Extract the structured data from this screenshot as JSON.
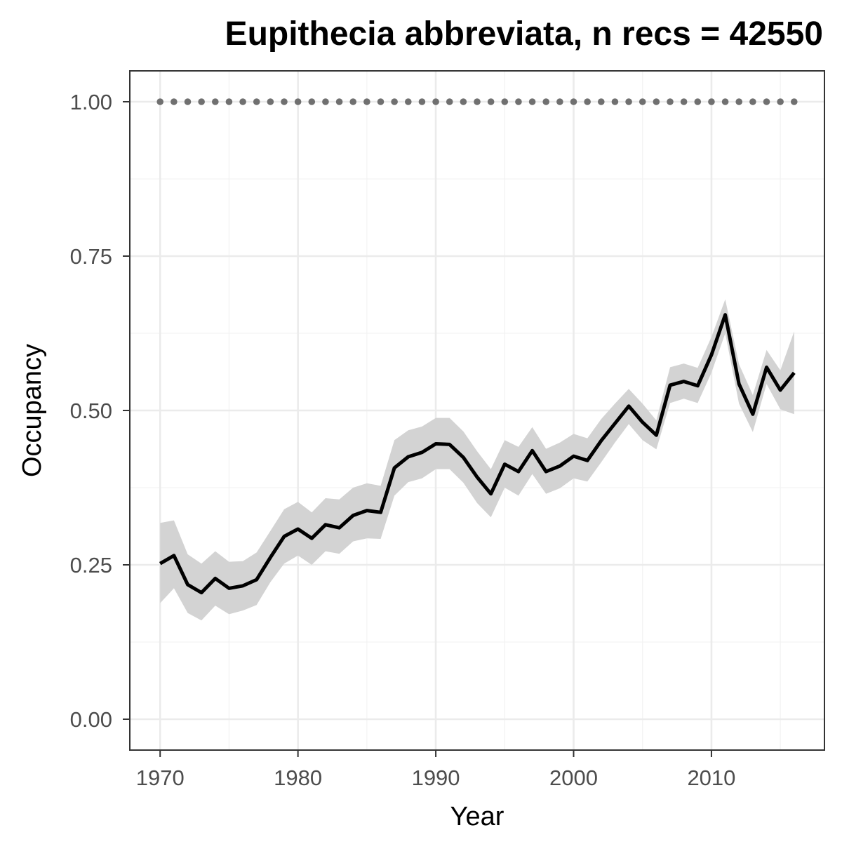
{
  "chart_data": {
    "type": "line",
    "title": "Eupithecia abbreviata, n recs = 42550",
    "xlabel": "Year",
    "ylabel": "Occupancy",
    "xlim": [
      1967.8,
      2018.2
    ],
    "ylim": [
      -0.05,
      1.05
    ],
    "x_ticks": [
      1970,
      1980,
      1990,
      2000,
      2010
    ],
    "y_ticks": [
      0.0,
      0.25,
      0.5,
      0.75,
      1.0
    ],
    "y_tick_labels": [
      "0.00",
      "0.25",
      "0.50",
      "0.75",
      "1.00"
    ],
    "grid": true,
    "legend": "none",
    "colors": {
      "line": "#000000",
      "ribbon": "#d3d3d3",
      "reference_points": "#707070",
      "grid_major": "#ebebeb",
      "grid_minor": "#f3f3f3",
      "panel_border": "#333333"
    },
    "series": [
      {
        "x": [
          1970,
          1971,
          1972,
          1973,
          1974,
          1975,
          1976,
          1977,
          1978,
          1979,
          1980,
          1981,
          1982,
          1983,
          1984,
          1985,
          1986,
          1987,
          1988,
          1989,
          1990,
          1991,
          1992,
          1993,
          1994,
          1995,
          1996,
          1997,
          1998,
          1999,
          2000,
          2001,
          2002,
          2003,
          2004,
          2005,
          2006,
          2007,
          2008,
          2009,
          2010,
          2011,
          2012,
          2013,
          2014,
          2015,
          2016
        ],
        "values": [
          0.252,
          0.265,
          0.218,
          0.205,
          0.228,
          0.212,
          0.216,
          0.226,
          0.262,
          0.296,
          0.308,
          0.293,
          0.315,
          0.31,
          0.33,
          0.338,
          0.335,
          0.407,
          0.425,
          0.432,
          0.446,
          0.445,
          0.424,
          0.392,
          0.365,
          0.413,
          0.401,
          0.435,
          0.401,
          0.41,
          0.426,
          0.419,
          0.451,
          0.479,
          0.507,
          0.481,
          0.46,
          0.541,
          0.547,
          0.54,
          0.59,
          0.655,
          0.543,
          0.494,
          0.57,
          0.533,
          0.561
        ],
        "lower": [
          0.188,
          0.212,
          0.172,
          0.16,
          0.184,
          0.17,
          0.176,
          0.185,
          0.222,
          0.252,
          0.265,
          0.25,
          0.272,
          0.268,
          0.288,
          0.293,
          0.292,
          0.362,
          0.384,
          0.39,
          0.405,
          0.405,
          0.383,
          0.35,
          0.327,
          0.375,
          0.362,
          0.397,
          0.365,
          0.374,
          0.39,
          0.385,
          0.416,
          0.448,
          0.478,
          0.452,
          0.437,
          0.512,
          0.519,
          0.512,
          0.561,
          0.625,
          0.511,
          0.465,
          0.543,
          0.502,
          0.494
        ],
        "upper": [
          0.318,
          0.322,
          0.267,
          0.252,
          0.272,
          0.255,
          0.256,
          0.27,
          0.305,
          0.34,
          0.352,
          0.335,
          0.358,
          0.356,
          0.375,
          0.382,
          0.378,
          0.452,
          0.468,
          0.474,
          0.488,
          0.488,
          0.466,
          0.434,
          0.405,
          0.452,
          0.441,
          0.473,
          0.438,
          0.448,
          0.462,
          0.455,
          0.486,
          0.511,
          0.535,
          0.511,
          0.484,
          0.57,
          0.576,
          0.569,
          0.619,
          0.68,
          0.575,
          0.525,
          0.598,
          0.565,
          0.628
        ]
      }
    ],
    "reference_points": {
      "x": [
        1970,
        1971,
        1972,
        1973,
        1974,
        1975,
        1976,
        1977,
        1978,
        1979,
        1980,
        1981,
        1982,
        1983,
        1984,
        1985,
        1986,
        1987,
        1988,
        1989,
        1990,
        1991,
        1992,
        1993,
        1994,
        1995,
        1996,
        1997,
        1998,
        1999,
        2000,
        2001,
        2002,
        2003,
        2004,
        2005,
        2006,
        2007,
        2008,
        2009,
        2010,
        2011,
        2012,
        2013,
        2014,
        2015,
        2016
      ],
      "y": 1.0
    }
  }
}
